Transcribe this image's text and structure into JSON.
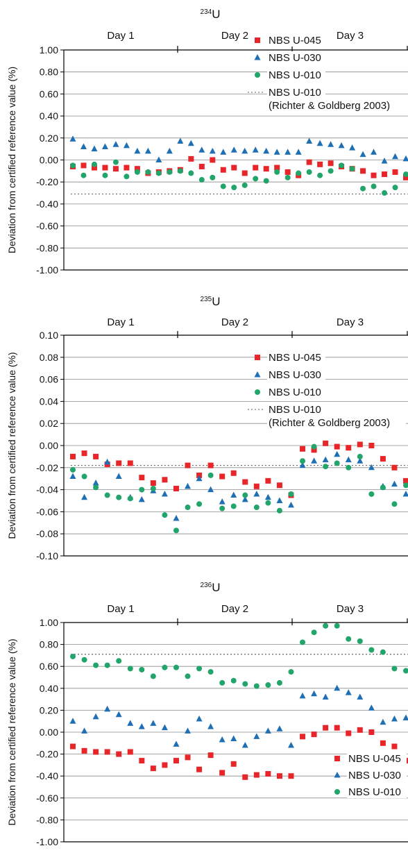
{
  "chart_data": [
    {
      "type": "scatter",
      "title": "234U",
      "isotope_mass": "234",
      "isotope_symbol": "U",
      "ylabel": "Deviation from certified reference value (%)",
      "ylim": [
        -1.0,
        1.0
      ],
      "yticks": [
        "1.00",
        "0.80",
        "0.60",
        "0.40",
        "0.20",
        "0.00",
        "-0.20",
        "-0.40",
        "-0.60",
        "-0.80",
        "-1.00"
      ],
      "ytick_values": [
        1.0,
        0.8,
        0.6,
        0.4,
        0.2,
        0.0,
        -0.2,
        -0.4,
        -0.6,
        -0.8,
        -1.0
      ],
      "grid": true,
      "days": [
        "Day 1",
        "Day 2",
        "Day 3"
      ],
      "legend_placement": "top-right",
      "legend": [
        "NBS U-045",
        "NBS U-030",
        "NBS U-010",
        "NBS U-010"
      ],
      "legend_note": "(Richter & Goldberg 2003)",
      "reference_line": {
        "name": "NBS U-010 (Richter & Goldberg 2003)",
        "value": -0.31
      },
      "series": [
        {
          "name": "NBS U-045",
          "marker": "square",
          "color": "#e8262a",
          "values": [
            -0.06,
            -0.05,
            -0.07,
            -0.07,
            -0.08,
            -0.07,
            -0.08,
            -0.12,
            -0.11,
            -0.1,
            -0.09,
            0.01,
            -0.06,
            0.0,
            -0.09,
            -0.07,
            -0.12,
            -0.07,
            -0.08,
            -0.07,
            -0.11,
            -0.14,
            -0.02,
            -0.04,
            -0.03,
            -0.06,
            -0.08,
            -0.1,
            -0.14,
            -0.13,
            -0.11,
            -0.16
          ]
        },
        {
          "name": "NBS U-030",
          "marker": "triangle",
          "color": "#1f6fb5",
          "values": [
            0.19,
            0.12,
            0.1,
            0.12,
            0.14,
            0.13,
            0.08,
            0.08,
            0.0,
            0.08,
            0.17,
            0.15,
            0.09,
            0.08,
            0.07,
            0.09,
            0.08,
            0.09,
            0.08,
            0.07,
            0.07,
            0.07,
            0.17,
            0.15,
            0.14,
            0.13,
            0.11,
            0.05,
            0.07,
            -0.01,
            0.03,
            0.01
          ]
        },
        {
          "name": "NBS U-010",
          "marker": "circle",
          "color": "#22a56a",
          "values": [
            -0.05,
            -0.14,
            -0.04,
            -0.14,
            -0.02,
            -0.15,
            -0.11,
            -0.11,
            -0.12,
            -0.11,
            -0.1,
            -0.12,
            -0.18,
            -0.16,
            -0.24,
            -0.25,
            -0.23,
            -0.17,
            -0.19,
            -0.11,
            -0.16,
            -0.12,
            -0.11,
            -0.14,
            -0.1,
            -0.05,
            -0.08,
            -0.26,
            -0.24,
            -0.3,
            -0.25,
            -0.13
          ]
        }
      ]
    },
    {
      "type": "scatter",
      "title": "235U",
      "isotope_mass": "235",
      "isotope_symbol": "U",
      "ylabel": "Deviation from certified reference value (%)",
      "ylim": [
        -0.1,
        0.1
      ],
      "yticks": [
        "0.10",
        "0.08",
        "0.06",
        "0.04",
        "0.02",
        "0.00",
        "-0.02",
        "-0.04",
        "-0.06",
        "-0.08",
        "-0.10"
      ],
      "ytick_values": [
        0.1,
        0.08,
        0.06,
        0.04,
        0.02,
        0.0,
        -0.02,
        -0.04,
        -0.06,
        -0.08,
        -0.1
      ],
      "grid": true,
      "days": [
        "Day 1",
        "Day 2",
        "Day 3"
      ],
      "legend_placement": "top-right",
      "legend": [
        "NBS U-045",
        "NBS U-030",
        "NBS U-010",
        "NBS U-010"
      ],
      "legend_note": "(Richter & Goldberg 2003)",
      "reference_line": {
        "name": "NBS U-010 (Richter & Goldberg 2003)",
        "value": -0.018
      },
      "series": [
        {
          "name": "NBS U-045",
          "marker": "square",
          "color": "#e8262a",
          "values": [
            -0.01,
            -0.007,
            -0.01,
            -0.017,
            -0.016,
            -0.016,
            -0.029,
            -0.034,
            -0.031,
            -0.039,
            -0.018,
            -0.027,
            -0.018,
            -0.028,
            -0.025,
            -0.033,
            -0.037,
            -0.032,
            -0.036,
            -0.045,
            -0.003,
            -0.004,
            0.002,
            -0.001,
            -0.002,
            0.001,
            0.0,
            -0.012,
            -0.02,
            -0.032
          ]
        },
        {
          "name": "NBS U-030",
          "marker": "triangle",
          "color": "#1f6fb5",
          "values": [
            -0.028,
            -0.047,
            -0.034,
            -0.015,
            -0.028,
            -0.047,
            -0.049,
            -0.041,
            -0.044,
            -0.066,
            -0.037,
            -0.03,
            -0.04,
            -0.051,
            -0.045,
            -0.049,
            -0.044,
            -0.047,
            -0.05,
            -0.054,
            -0.018,
            -0.014,
            -0.013,
            -0.008,
            -0.013,
            -0.014,
            -0.02,
            -0.037,
            -0.035,
            -0.044
          ]
        },
        {
          "name": "NBS U-010",
          "marker": "circle",
          "color": "#22a56a",
          "values": [
            -0.022,
            -0.028,
            -0.038,
            -0.045,
            -0.047,
            -0.048,
            -0.04,
            -0.039,
            -0.063,
            -0.077,
            -0.056,
            -0.053,
            -0.027,
            -0.057,
            -0.055,
            -0.045,
            -0.056,
            -0.052,
            -0.059,
            -0.044,
            -0.014,
            -0.001,
            -0.019,
            -0.016,
            -0.02,
            -0.01,
            -0.044,
            -0.038,
            -0.053,
            -0.036
          ]
        }
      ]
    },
    {
      "type": "scatter",
      "title": "236U",
      "isotope_mass": "236",
      "isotope_symbol": "U",
      "ylabel": "Deviation from certified reference value (%)",
      "ylim": [
        -1.0,
        1.0
      ],
      "yticks": [
        "1.00",
        "0.80",
        "0.60",
        "0.40",
        "0.20",
        "0.00",
        "-0.20",
        "-0.40",
        "-0.60",
        "-0.80",
        "-1.00"
      ],
      "ytick_values": [
        1.0,
        0.8,
        0.6,
        0.4,
        0.2,
        0.0,
        -0.2,
        -0.4,
        -0.6,
        -0.8,
        -1.0
      ],
      "grid": true,
      "days": [
        "Day 1",
        "Day 2",
        "Day 3"
      ],
      "legend_placement": "bottom-right",
      "legend": [
        "NBS U-045",
        "NBS U-030",
        "NBS U-010"
      ],
      "legend_note": "",
      "reference_line": {
        "name": "NBS U-010 (Richter & Goldberg 2003)",
        "value": 0.71
      },
      "series": [
        {
          "name": "NBS U-045",
          "marker": "square",
          "color": "#e8262a",
          "values": [
            -0.13,
            -0.17,
            -0.18,
            -0.18,
            -0.2,
            -0.18,
            -0.26,
            -0.33,
            -0.3,
            -0.26,
            -0.23,
            -0.34,
            -0.21,
            -0.37,
            -0.29,
            -0.41,
            -0.39,
            -0.38,
            -0.4,
            -0.4,
            -0.04,
            -0.02,
            0.04,
            0.04,
            -0.01,
            0.02,
            0.0,
            -0.1,
            -0.13,
            -0.26
          ]
        },
        {
          "name": "NBS U-030",
          "marker": "triangle",
          "color": "#1f6fb5",
          "values": [
            0.1,
            0.01,
            0.14,
            0.21,
            0.16,
            0.08,
            0.05,
            0.08,
            0.04,
            -0.11,
            0.01,
            0.12,
            0.05,
            -0.07,
            -0.06,
            -0.12,
            -0.04,
            0.01,
            0.03,
            -0.12,
            0.33,
            0.35,
            0.32,
            0.4,
            0.36,
            0.32,
            0.22,
            0.09,
            0.12,
            0.13
          ]
        },
        {
          "name": "NBS U-010",
          "marker": "circle",
          "color": "#22a56a",
          "values": [
            0.69,
            0.66,
            0.61,
            0.61,
            0.65,
            0.58,
            0.57,
            0.51,
            0.59,
            0.59,
            0.51,
            0.58,
            0.55,
            0.45,
            0.47,
            0.44,
            0.42,
            0.43,
            0.45,
            0.55,
            0.82,
            0.91,
            0.97,
            0.97,
            0.85,
            0.83,
            0.75,
            0.73,
            0.58,
            0.56
          ]
        }
      ]
    }
  ]
}
